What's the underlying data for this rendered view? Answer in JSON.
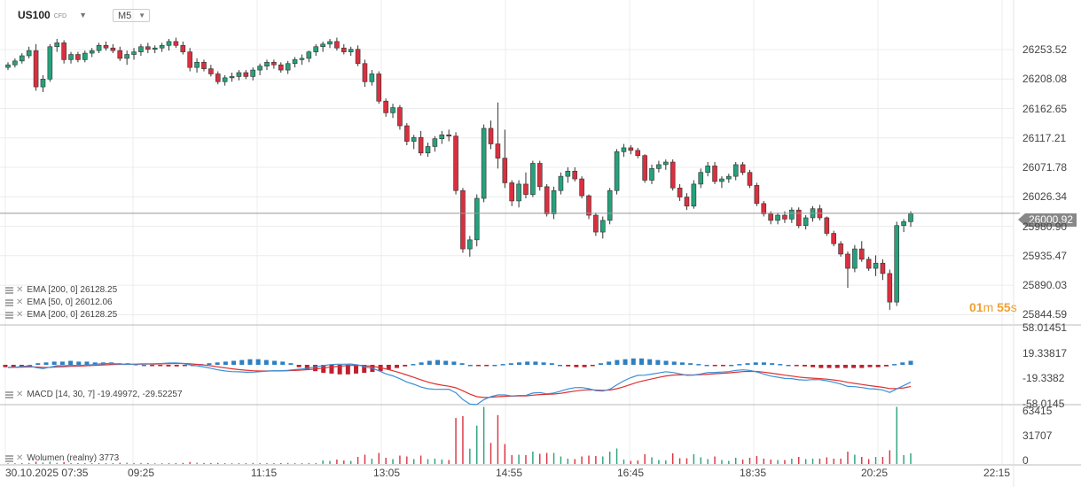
{
  "header": {
    "symbol": "US100",
    "symbol_tag": "CFD",
    "timeframe": "M5"
  },
  "indicators": {
    "ema1": "EMA [200, 0] 26128.25",
    "ema2": "EMA [50, 0] 26012.06",
    "ema3": "EMA [200, 0] 26128.25",
    "macd": "MACD [14, 30, 7] -19.49972, -29.52257",
    "volume": "Wolumen (realny) 3773"
  },
  "timer": {
    "minutes": "01",
    "m": "m",
    "seconds": "55",
    "s": "s"
  },
  "current_price_label": "26000.92",
  "colors": {
    "up": "#26a17b",
    "down": "#d9303f",
    "macd_pos": "#2f7fc1",
    "macd_neg": "#c0202e",
    "line": "#999999"
  },
  "chart_data": [
    {
      "type": "candlestick",
      "title": "US100",
      "timeframe": "M5",
      "y_tick_labels": [
        "26253.52",
        "26208.08",
        "26162.65",
        "26117.21",
        "26071.78",
        "26026.34",
        "25980.90",
        "25935.47",
        "25890.03",
        "25844.59"
      ],
      "y_ticks": [
        26253.52,
        26208.08,
        26162.65,
        26117.21,
        26071.78,
        26026.34,
        25980.9,
        25935.47,
        25890.03,
        25844.59
      ],
      "ylim": [
        25830,
        26300
      ],
      "x_tick_labels": [
        "30.10.2025 07:35",
        "09:25",
        "11:15",
        "13:05",
        "14:55",
        "16:45",
        "18:35",
        "20:25",
        "22:15"
      ],
      "current_price": 26000.92,
      "candles_ohlc_approx": [
        [
          26226,
          26234,
          26222,
          26230
        ],
        [
          26230,
          26240,
          26226,
          26236
        ],
        [
          26236,
          26248,
          26232,
          26244
        ],
        [
          26244,
          26258,
          26240,
          26252
        ],
        [
          26252,
          26262,
          26190,
          26196
        ],
        [
          26196,
          26214,
          26188,
          26208
        ],
        [
          26208,
          26262,
          26204,
          26258
        ],
        [
          26258,
          26270,
          26250,
          26264
        ],
        [
          26264,
          26268,
          26232,
          26238
        ],
        [
          26238,
          26250,
          26232,
          26246
        ],
        [
          26246,
          26250,
          26234,
          26238
        ],
        [
          26238,
          26252,
          26234,
          26248
        ],
        [
          26248,
          26256,
          26242,
          26252
        ],
        [
          26252,
          26264,
          26248,
          26260
        ],
        [
          26260,
          26266,
          26252,
          26256
        ],
        [
          26256,
          26262,
          26248,
          26252
        ],
        [
          26252,
          26258,
          26236,
          26240
        ],
        [
          26240,
          26252,
          26230,
          26246
        ],
        [
          26246,
          26256,
          26238,
          26250
        ],
        [
          26250,
          26262,
          26244,
          26258
        ],
        [
          26258,
          26264,
          26248,
          26254
        ],
        [
          26254,
          26260,
          26248,
          26256
        ],
        [
          26256,
          26264,
          26250,
          26260
        ],
        [
          26260,
          26270,
          26252,
          26266
        ],
        [
          26266,
          26272,
          26256,
          26260
        ],
        [
          26260,
          26266,
          26246,
          26250
        ],
        [
          26250,
          26256,
          26220,
          26226
        ],
        [
          26226,
          26240,
          26218,
          26234
        ],
        [
          26234,
          26238,
          26220,
          26224
        ],
        [
          26224,
          26230,
          26212,
          26216
        ],
        [
          26216,
          26220,
          26200,
          26204
        ],
        [
          26204,
          26214,
          26198,
          26210
        ],
        [
          26210,
          26218,
          26204,
          26212
        ],
        [
          26212,
          26222,
          26206,
          26218
        ],
        [
          26218,
          26222,
          26208,
          26212
        ],
        [
          26212,
          26226,
          26206,
          26222
        ],
        [
          26222,
          26232,
          26214,
          26228
        ],
        [
          26228,
          26238,
          26222,
          26234
        ],
        [
          26234,
          26238,
          26224,
          26230
        ],
        [
          26230,
          26234,
          26218,
          26222
        ],
        [
          26222,
          26236,
          26216,
          26232
        ],
        [
          26232,
          26242,
          26226,
          26238
        ],
        [
          26238,
          26246,
          26230,
          26240
        ],
        [
          26240,
          26252,
          26234,
          26250
        ],
        [
          26250,
          26262,
          26244,
          26258
        ],
        [
          26258,
          26266,
          26250,
          26262
        ],
        [
          26262,
          26270,
          26256,
          26266
        ],
        [
          26266,
          26272,
          26252,
          26256
        ],
        [
          26256,
          26262,
          26246,
          26250
        ],
        [
          26250,
          26258,
          26244,
          26254
        ],
        [
          26254,
          26260,
          26228,
          26232
        ],
        [
          26232,
          26238,
          26196,
          26204
        ],
        [
          26204,
          26222,
          26198,
          26216
        ],
        [
          26216,
          26220,
          26170,
          26174
        ],
        [
          26174,
          26178,
          26150,
          26156
        ],
        [
          26156,
          26170,
          26148,
          26164
        ],
        [
          26164,
          26168,
          26130,
          26136
        ],
        [
          26136,
          26140,
          26106,
          26112
        ],
        [
          26112,
          26122,
          26100,
          26118
        ],
        [
          26118,
          26128,
          26090,
          26094
        ],
        [
          26094,
          26110,
          26088,
          26104
        ],
        [
          26104,
          26120,
          26096,
          26116
        ],
        [
          26116,
          26128,
          26108,
          26122
        ],
        [
          26122,
          26130,
          26112,
          26120
        ],
        [
          26120,
          26126,
          26030,
          26036
        ],
        [
          26036,
          26040,
          25940,
          25946
        ],
        [
          25946,
          25966,
          25934,
          25960
        ],
        [
          25960,
          26030,
          25950,
          26024
        ],
        [
          26024,
          26138,
          26018,
          26132
        ],
        [
          26132,
          26144,
          26100,
          26108
        ],
        [
          26108,
          26172,
          26070,
          26086
        ],
        [
          26086,
          26130,
          26040,
          26048
        ],
        [
          26048,
          26052,
          26012,
          26020
        ],
        [
          26020,
          26052,
          26010,
          26046
        ],
        [
          26046,
          26064,
          26024,
          26030
        ],
        [
          26030,
          26082,
          26026,
          26078
        ],
        [
          26078,
          26082,
          26036,
          26042
        ],
        [
          26042,
          26046,
          25996,
          26000
        ],
        [
          26000,
          26042,
          25992,
          26036
        ],
        [
          26036,
          26064,
          26030,
          26058
        ],
        [
          26058,
          26072,
          26048,
          26066
        ],
        [
          26066,
          26072,
          26050,
          26054
        ],
        [
          26054,
          26058,
          26024,
          26028
        ],
        [
          26028,
          26030,
          25992,
          25998
        ],
        [
          25998,
          26002,
          25966,
          25972
        ],
        [
          25972,
          25996,
          25962,
          25990
        ],
        [
          25990,
          26040,
          25984,
          26036
        ],
        [
          26036,
          26100,
          26030,
          26096
        ],
        [
          26096,
          26108,
          26088,
          26102
        ],
        [
          26102,
          26106,
          26092,
          26098
        ],
        [
          26098,
          26102,
          26086,
          26090
        ],
        [
          26090,
          26092,
          26048,
          26052
        ],
        [
          26052,
          26076,
          26046,
          26070
        ],
        [
          26070,
          26082,
          26064,
          26076
        ],
        [
          26076,
          26084,
          26068,
          26080
        ],
        [
          26080,
          26084,
          26036,
          26040
        ],
        [
          26040,
          26046,
          26020,
          26026
        ],
        [
          26026,
          26032,
          26006,
          26012
        ],
        [
          26012,
          26052,
          26008,
          26046
        ],
        [
          26046,
          26070,
          26040,
          26064
        ],
        [
          26064,
          26080,
          26058,
          26074
        ],
        [
          26074,
          26080,
          26046,
          26050
        ],
        [
          26050,
          26058,
          26040,
          26054
        ],
        [
          26054,
          26062,
          26048,
          26058
        ],
        [
          26058,
          26080,
          26052,
          26076
        ],
        [
          26076,
          26080,
          26060,
          26064
        ],
        [
          26064,
          26068,
          26040,
          26044
        ],
        [
          26044,
          26048,
          26012,
          26016
        ],
        [
          26016,
          26020,
          25996,
          26000
        ],
        [
          26000,
          26004,
          25984,
          25990
        ],
        [
          25990,
          26002,
          25984,
          25998
        ],
        [
          25998,
          26004,
          25986,
          25992
        ],
        [
          25992,
          26010,
          25986,
          26006
        ],
        [
          26006,
          26010,
          25978,
          25982
        ],
        [
          25982,
          25998,
          25976,
          25994
        ],
        [
          25994,
          26012,
          25988,
          26008
        ],
        [
          26008,
          26014,
          25990,
          25994
        ],
        [
          25994,
          25996,
          25966,
          25970
        ],
        [
          25970,
          25974,
          25950,
          25954
        ],
        [
          25954,
          25958,
          25934,
          25938
        ],
        [
          25938,
          25942,
          25886,
          25916
        ],
        [
          25916,
          25952,
          25910,
          25946
        ],
        [
          25946,
          25958,
          25926,
          25930
        ],
        [
          25930,
          25934,
          25912,
          25916
        ],
        [
          25916,
          25936,
          25904,
          25924
        ],
        [
          25924,
          25930,
          25898,
          25908
        ],
        [
          25908,
          25914,
          25852,
          25864
        ],
        [
          25864,
          25988,
          25858,
          25982
        ],
        [
          25982,
          25992,
          25972,
          25988
        ],
        [
          25988,
          26004,
          25980,
          26000
        ]
      ],
      "series": [
        {
          "name": "EMA [200, 0]",
          "last": 26128.25
        },
        {
          "name": "EMA [50, 0]",
          "last": 26012.06
        }
      ]
    },
    {
      "type": "bar",
      "title": "MACD [14, 30, 7]",
      "y_tick_labels": [
        "58.01451",
        "19.33817",
        "-19.3382",
        "-58.0145"
      ],
      "y_ticks": [
        58.01451,
        19.33817,
        -19.3382,
        -58.0145
      ],
      "ylim": [
        -58.0145,
        58.01451
      ],
      "histogram_approx": [
        -3,
        -3,
        -2,
        0,
        2,
        3,
        4,
        4,
        5,
        4,
        4,
        3,
        3,
        3,
        2,
        2,
        1,
        0,
        -1,
        -1,
        -2,
        -2,
        -1,
        0,
        1,
        2,
        3,
        4,
        5,
        6,
        7,
        7,
        6,
        5,
        4,
        2,
        -3,
        -6,
        -8,
        -10,
        -11,
        -12,
        -12,
        -11,
        -10,
        -9,
        -8,
        -6,
        -4,
        -2,
        1,
        3,
        5,
        6,
        5,
        4,
        2,
        0,
        -1,
        -1,
        0,
        1,
        2,
        3,
        4,
        4,
        3,
        2,
        0,
        -2,
        -3,
        -3,
        -1,
        2,
        4,
        6,
        7,
        8,
        8,
        7,
        6,
        5,
        4,
        3,
        2,
        1,
        0,
        -1,
        -1,
        0,
        1,
        2,
        3,
        3,
        2,
        1,
        0,
        -1,
        -2,
        -3,
        -4,
        -4,
        -4,
        -4,
        -4,
        -4,
        -3,
        -3,
        -2,
        1,
        3,
        5
      ],
      "macd_last": -19.49972,
      "signal_last": -29.52257
    },
    {
      "type": "bar",
      "title": "Wolumen (realny)",
      "y_tick_labels": [
        "63415",
        "31707",
        "0"
      ],
      "y_ticks": [
        63415,
        31707,
        0
      ],
      "ylim": [
        0,
        63415
      ],
      "last_value": 3773
    }
  ]
}
